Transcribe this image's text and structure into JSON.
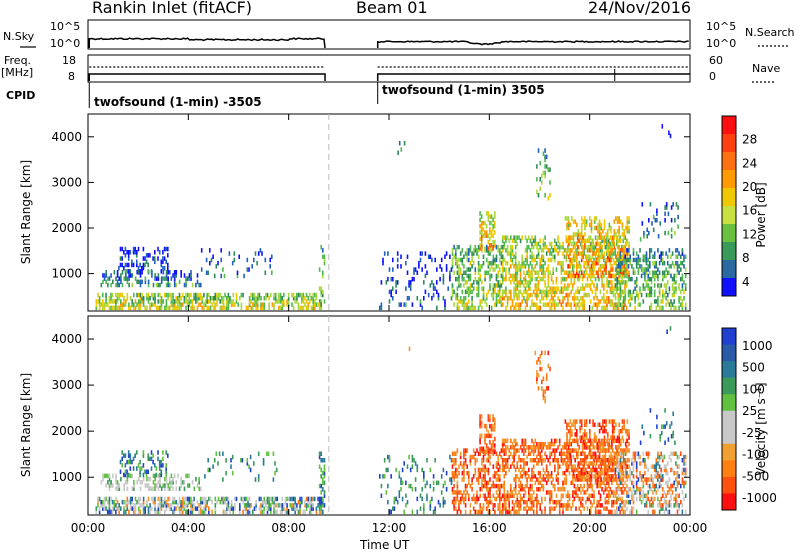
{
  "header": {
    "site": "Rankin Inlet (fitACF)",
    "beam": "Beam 01",
    "date": "24/Nov/2016"
  },
  "strip": {
    "nsky_label": "N.Sky",
    "nsearch_label": "N.Search",
    "nsky_ticks": [
      "10^5",
      "10^0"
    ],
    "nsearch_ticks": [
      "10^5",
      "10^0"
    ],
    "freq_label_1": "Freq.",
    "freq_label_2": "[MHz]",
    "freq_ticks": [
      "18",
      "8"
    ],
    "nave_label": "Nave",
    "nave_ticks": [
      "60",
      "0"
    ],
    "cpid_label": "CPID",
    "cpid_1": "twofsound (1-min) -3505",
    "cpid_2": "twofsound (1-min) 3505"
  },
  "chart_data": [
    {
      "type": "heatmap",
      "title": "Power",
      "xlabel": "Time UT",
      "ylabel": "Slant Range [km]",
      "xlim": [
        0,
        24
      ],
      "ylim": [
        180,
        4500
      ],
      "x_ticks": [
        "00:00",
        "04:00",
        "08:00",
        "12:00",
        "16:00",
        "20:00",
        "00:00"
      ],
      "y_ticks": [
        1000,
        2000,
        3000,
        4000
      ],
      "colorbar": {
        "label": "Power [dB]",
        "ticks": [
          "28",
          "24",
          "20",
          "16",
          "12",
          "8",
          "4"
        ],
        "range": [
          0,
          30
        ]
      },
      "data_gap_hours": [
        9.45,
        11.55
      ]
    },
    {
      "type": "heatmap",
      "title": "Velocity",
      "xlabel": "Time UT",
      "ylabel": "Slant Range [km]",
      "xlim": [
        0,
        24
      ],
      "ylim": [
        180,
        4500
      ],
      "x_ticks": [
        "00:00",
        "04:00",
        "08:00",
        "12:00",
        "16:00",
        "20:00",
        "00:00"
      ],
      "y_ticks": [
        1000,
        2000,
        3000,
        4000
      ],
      "colorbar": {
        "label": "Velocity [m s⁻¹]",
        "ticks": [
          "1000",
          "500",
          "100",
          "25",
          "-25",
          "-100",
          "-500",
          "-1000"
        ]
      },
      "data_gap_hours": [
        9.45,
        11.55
      ]
    }
  ]
}
